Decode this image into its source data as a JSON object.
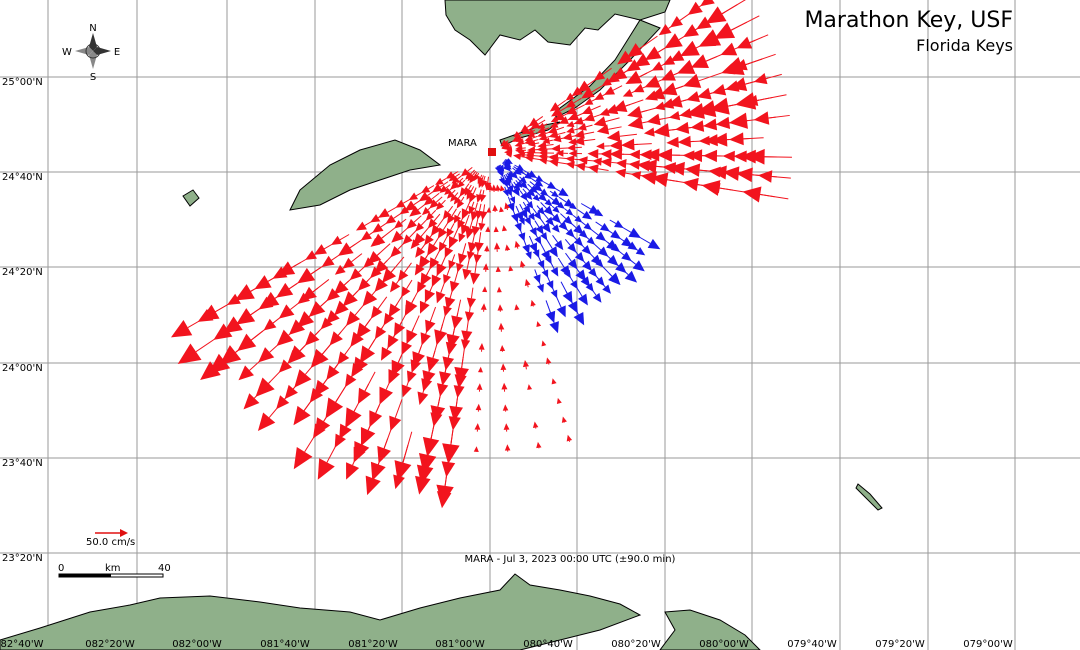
{
  "header": {
    "title": "Marathon Key, USF",
    "subtitle": "Florida Keys"
  },
  "compass": {
    "north": "N",
    "south": "S",
    "west": "W",
    "east": "E"
  },
  "station": {
    "label": "MARA"
  },
  "latitude_labels": [
    "25°00'N",
    "24°40'N",
    "24°20'N",
    "24°00'N",
    "23°40'N",
    "23°20'N"
  ],
  "longitude_labels": [
    "82°40'W",
    "082°20'W",
    "082°00'W",
    "081°40'W",
    "081°20'W",
    "081°00'W",
    "080°40'W",
    "080°20'W",
    "080°00'W",
    "079°40'W",
    "079°20'W",
    "079°00'W"
  ],
  "velocity_scale": {
    "label": "50.0 cm/s"
  },
  "distance_scale": {
    "start": "0",
    "unit": "km",
    "end": "40"
  },
  "footer": {
    "caption": "MARA - Jul 3, 2023 00:00 UTC (±90.0 min)"
  }
}
